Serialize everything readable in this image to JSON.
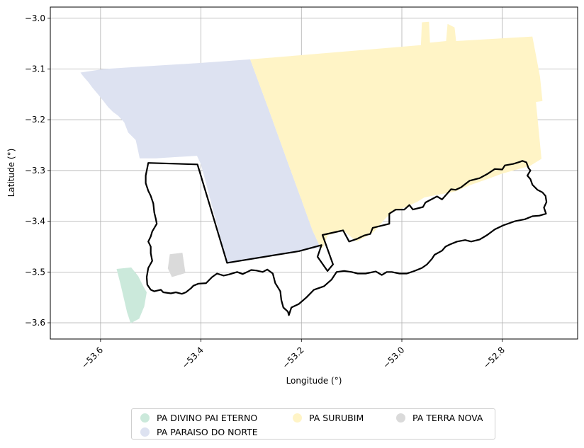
{
  "chart_data": {
    "type": "map",
    "title": "",
    "xlabel": "Longitude (°)",
    "ylabel": "Latitude (°)",
    "xlim": [
      -53.7,
      -52.65
    ],
    "ylim": [
      -3.632,
      -2.978
    ],
    "xticks": [
      {
        "value": -53.6,
        "label": "−53.6"
      },
      {
        "value": -53.4,
        "label": "−53.4"
      },
      {
        "value": -53.2,
        "label": "−53.2"
      },
      {
        "value": -53.0,
        "label": "−53.0"
      },
      {
        "value": -52.8,
        "label": "−52.8"
      }
    ],
    "yticks": [
      {
        "value": -3.0,
        "label": "−3.0"
      },
      {
        "value": -3.1,
        "label": "−3.1"
      },
      {
        "value": -3.2,
        "label": "−3.2"
      },
      {
        "value": -3.3,
        "label": "−3.3"
      },
      {
        "value": -3.4,
        "label": "−3.4"
      },
      {
        "value": -3.5,
        "label": "−3.5"
      },
      {
        "value": -3.6,
        "label": "−3.6"
      }
    ],
    "grid": true,
    "legend_position": "bottom-center",
    "layers": [
      {
        "name": "PA DIVINO PAI ETERNO",
        "color": "#cbe9db",
        "coords": [
          [
            -53.568,
            -3.494
          ],
          [
            -53.539,
            -3.491
          ],
          [
            -53.525,
            -3.508
          ],
          [
            -53.515,
            -3.528
          ],
          [
            -53.508,
            -3.54
          ],
          [
            -53.513,
            -3.568
          ],
          [
            -53.523,
            -3.592
          ],
          [
            -53.54,
            -3.601
          ],
          [
            -53.547,
            -3.58
          ],
          [
            -53.56,
            -3.525
          ]
        ]
      },
      {
        "name": "PA PARAISO DO NORTE",
        "color": "#dde2f1",
        "coords": [
          [
            -53.64,
            -3.107
          ],
          [
            -53.593,
            -3.1
          ],
          [
            -53.5,
            -3.094
          ],
          [
            -53.4,
            -3.088
          ],
          [
            -53.302,
            -3.081
          ],
          [
            -53.265,
            -3.18
          ],
          [
            -53.225,
            -3.29
          ],
          [
            -53.198,
            -3.363
          ],
          [
            -53.178,
            -3.418
          ],
          [
            -53.162,
            -3.452
          ],
          [
            -53.205,
            -3.459
          ],
          [
            -53.348,
            -3.482
          ],
          [
            -53.4,
            -3.288
          ],
          [
            -53.408,
            -3.271
          ],
          [
            -53.49,
            -3.276
          ],
          [
            -53.522,
            -3.276
          ],
          [
            -53.525,
            -3.262
          ],
          [
            -53.53,
            -3.24
          ],
          [
            -53.545,
            -3.225
          ],
          [
            -53.553,
            -3.205
          ],
          [
            -53.565,
            -3.192
          ],
          [
            -53.575,
            -3.185
          ],
          [
            -53.585,
            -3.175
          ],
          [
            -53.595,
            -3.162
          ],
          [
            -53.605,
            -3.15
          ],
          [
            -53.616,
            -3.137
          ],
          [
            -53.625,
            -3.125
          ],
          [
            -53.634,
            -3.115
          ]
        ]
      },
      {
        "name": "PA SURUBIM",
        "color": "#fff4c6",
        "coords": [
          [
            -53.302,
            -3.081
          ],
          [
            -52.962,
            -3.053
          ],
          [
            -52.96,
            -3.008
          ],
          [
            -52.946,
            -3.007
          ],
          [
            -52.944,
            -3.048
          ],
          [
            -52.912,
            -3.045
          ],
          [
            -52.909,
            -3.011
          ],
          [
            -52.895,
            -3.018
          ],
          [
            -52.892,
            -3.045
          ],
          [
            -52.74,
            -3.036
          ],
          [
            -52.725,
            -3.115
          ],
          [
            -52.72,
            -3.163
          ],
          [
            -52.733,
            -3.165
          ],
          [
            -52.722,
            -3.277
          ],
          [
            -52.745,
            -3.291
          ],
          [
            -52.8,
            -3.306
          ],
          [
            -52.83,
            -3.317
          ],
          [
            -52.865,
            -3.329
          ],
          [
            -52.892,
            -3.341
          ],
          [
            -52.955,
            -3.353
          ],
          [
            -52.97,
            -3.362
          ],
          [
            -52.995,
            -3.373
          ],
          [
            -53.02,
            -3.382
          ],
          [
            -53.035,
            -3.397
          ],
          [
            -53.055,
            -3.42
          ],
          [
            -53.062,
            -3.425
          ],
          [
            -53.09,
            -3.44
          ],
          [
            -53.117,
            -3.418
          ],
          [
            -53.148,
            -3.428
          ],
          [
            -53.157,
            -3.452
          ],
          [
            -53.162,
            -3.452
          ],
          [
            -53.178,
            -3.418
          ],
          [
            -53.198,
            -3.363
          ],
          [
            -53.225,
            -3.29
          ],
          [
            -53.265,
            -3.18
          ]
        ]
      },
      {
        "name": "PA TERRA NOVA",
        "color": "#dadada",
        "coords": [
          [
            -53.462,
            -3.465
          ],
          [
            -53.437,
            -3.462
          ],
          [
            -53.431,
            -3.502
          ],
          [
            -53.458,
            -3.51
          ],
          [
            -53.466,
            -3.493
          ]
        ]
      }
    ],
    "boundary": {
      "color": "#000000",
      "coords": [
        [
          -53.505,
          -3.285
        ],
        [
          -53.407,
          -3.288
        ],
        [
          -53.348,
          -3.482
        ],
        [
          -53.205,
          -3.459
        ],
        [
          -53.16,
          -3.447
        ],
        [
          -53.168,
          -3.47
        ],
        [
          -53.148,
          -3.498
        ],
        [
          -53.137,
          -3.485
        ],
        [
          -53.158,
          -3.427
        ],
        [
          -53.117,
          -3.418
        ],
        [
          -53.105,
          -3.44
        ],
        [
          -53.09,
          -3.435
        ],
        [
          -53.075,
          -3.428
        ],
        [
          -53.063,
          -3.425
        ],
        [
          -53.058,
          -3.413
        ],
        [
          -53.025,
          -3.405
        ],
        [
          -53.025,
          -3.385
        ],
        [
          -53.012,
          -3.377
        ],
        [
          -52.995,
          -3.377
        ],
        [
          -52.985,
          -3.368
        ],
        [
          -52.978,
          -3.377
        ],
        [
          -52.958,
          -3.372
        ],
        [
          -52.953,
          -3.363
        ],
        [
          -52.93,
          -3.351
        ],
        [
          -52.92,
          -3.357
        ],
        [
          -52.902,
          -3.337
        ],
        [
          -52.893,
          -3.338
        ],
        [
          -52.882,
          -3.333
        ],
        [
          -52.865,
          -3.32
        ],
        [
          -52.845,
          -3.315
        ],
        [
          -52.83,
          -3.307
        ],
        [
          -52.815,
          -3.297
        ],
        [
          -52.8,
          -3.298
        ],
        [
          -52.795,
          -3.29
        ],
        [
          -52.778,
          -3.287
        ],
        [
          -52.765,
          -3.283
        ],
        [
          -52.76,
          -3.281
        ],
        [
          -52.752,
          -3.284
        ],
        [
          -52.748,
          -3.295
        ],
        [
          -52.744,
          -3.3
        ],
        [
          -52.75,
          -3.31
        ],
        [
          -52.744,
          -3.317
        ],
        [
          -52.74,
          -3.328
        ],
        [
          -52.73,
          -3.338
        ],
        [
          -52.72,
          -3.343
        ],
        [
          -52.714,
          -3.35
        ],
        [
          -52.712,
          -3.362
        ],
        [
          -52.717,
          -3.373
        ],
        [
          -52.713,
          -3.385
        ],
        [
          -52.726,
          -3.389
        ],
        [
          -52.74,
          -3.39
        ],
        [
          -52.755,
          -3.396
        ],
        [
          -52.775,
          -3.4
        ],
        [
          -52.798,
          -3.408
        ],
        [
          -52.815,
          -3.416
        ],
        [
          -52.83,
          -3.427
        ],
        [
          -52.845,
          -3.436
        ],
        [
          -52.862,
          -3.44
        ],
        [
          -52.874,
          -3.437
        ],
        [
          -52.89,
          -3.44
        ],
        [
          -52.905,
          -3.446
        ],
        [
          -52.913,
          -3.45
        ],
        [
          -52.92,
          -3.458
        ],
        [
          -52.935,
          -3.466
        ],
        [
          -52.94,
          -3.474
        ],
        [
          -52.95,
          -3.485
        ],
        [
          -52.96,
          -3.492
        ],
        [
          -52.975,
          -3.498
        ],
        [
          -52.99,
          -3.503
        ],
        [
          -53.005,
          -3.503
        ],
        [
          -53.02,
          -3.5
        ],
        [
          -53.03,
          -3.5
        ],
        [
          -53.04,
          -3.506
        ],
        [
          -53.052,
          -3.499
        ],
        [
          -53.072,
          -3.503
        ],
        [
          -53.088,
          -3.503
        ],
        [
          -53.1,
          -3.5
        ],
        [
          -53.115,
          -3.498
        ],
        [
          -53.13,
          -3.5
        ],
        [
          -53.14,
          -3.515
        ],
        [
          -53.155,
          -3.528
        ],
        [
          -53.175,
          -3.535
        ],
        [
          -53.19,
          -3.55
        ],
        [
          -53.205,
          -3.563
        ],
        [
          -53.22,
          -3.57
        ],
        [
          -53.225,
          -3.585
        ],
        [
          -53.227,
          -3.578
        ],
        [
          -53.236,
          -3.57
        ],
        [
          -53.24,
          -3.555
        ],
        [
          -53.242,
          -3.538
        ],
        [
          -53.252,
          -3.522
        ],
        [
          -53.257,
          -3.503
        ],
        [
          -53.268,
          -3.495
        ],
        [
          -53.277,
          -3.5
        ],
        [
          -53.29,
          -3.497
        ],
        [
          -53.3,
          -3.496
        ],
        [
          -53.308,
          -3.5
        ],
        [
          -53.317,
          -3.504
        ],
        [
          -53.328,
          -3.5
        ],
        [
          -53.345,
          -3.505
        ],
        [
          -53.355,
          -3.507
        ],
        [
          -53.368,
          -3.503
        ],
        [
          -53.378,
          -3.51
        ],
        [
          -53.39,
          -3.522
        ],
        [
          -53.405,
          -3.523
        ],
        [
          -53.415,
          -3.527
        ],
        [
          -53.42,
          -3.532
        ],
        [
          -53.43,
          -3.54
        ],
        [
          -53.438,
          -3.543
        ],
        [
          -53.45,
          -3.54
        ],
        [
          -53.46,
          -3.542
        ],
        [
          -53.475,
          -3.54
        ],
        [
          -53.48,
          -3.535
        ],
        [
          -53.493,
          -3.538
        ],
        [
          -53.5,
          -3.535
        ],
        [
          -53.507,
          -3.525
        ],
        [
          -53.508,
          -3.51
        ],
        [
          -53.505,
          -3.492
        ],
        [
          -53.497,
          -3.478
        ],
        [
          -53.5,
          -3.463
        ],
        [
          -53.5,
          -3.45
        ],
        [
          -53.505,
          -3.44
        ],
        [
          -53.5,
          -3.43
        ],
        [
          -53.497,
          -3.42
        ],
        [
          -53.488,
          -3.405
        ],
        [
          -53.49,
          -3.395
        ],
        [
          -53.493,
          -3.383
        ],
        [
          -53.495,
          -3.365
        ],
        [
          -53.5,
          -3.35
        ],
        [
          -53.505,
          -3.34
        ],
        [
          -53.51,
          -3.325
        ],
        [
          -53.51,
          -3.31
        ],
        [
          -53.507,
          -3.295
        ],
        [
          -53.505,
          -3.285
        ]
      ]
    }
  }
}
